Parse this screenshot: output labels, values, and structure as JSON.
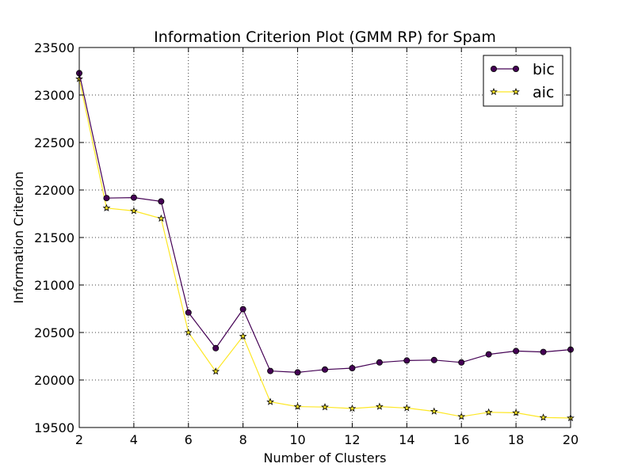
{
  "chart_data": {
    "type": "line",
    "title": "Information Criterion Plot (GMM RP) for Spam",
    "xlabel": "Number of Clusters",
    "ylabel": "Information Criterion",
    "xlim": [
      2,
      20
    ],
    "ylim": [
      19500,
      23500
    ],
    "xticks": [
      2,
      4,
      6,
      8,
      10,
      12,
      14,
      16,
      18,
      20
    ],
    "yticks": [
      19500,
      20000,
      20500,
      21000,
      21500,
      22000,
      22500,
      23000,
      23500
    ],
    "grid": true,
    "legend_position": "top-right",
    "x": [
      2,
      3,
      4,
      5,
      6,
      7,
      8,
      9,
      10,
      11,
      12,
      13,
      14,
      15,
      16,
      17,
      18,
      19,
      20
    ],
    "series": [
      {
        "name": "bic",
        "color": "#440154",
        "marker": "circle",
        "values": [
          23230,
          21915,
          21920,
          21880,
          20710,
          20335,
          20745,
          20095,
          20080,
          20110,
          20125,
          20185,
          20205,
          20210,
          20185,
          20270,
          20305,
          20295,
          20320
        ]
      },
      {
        "name": "aic",
        "color": "#fde725",
        "marker": "star",
        "values": [
          23170,
          21810,
          21780,
          21700,
          20500,
          20090,
          20460,
          19770,
          19720,
          19715,
          19700,
          19720,
          19705,
          19670,
          19615,
          19660,
          19655,
          19605,
          19600
        ]
      }
    ]
  }
}
